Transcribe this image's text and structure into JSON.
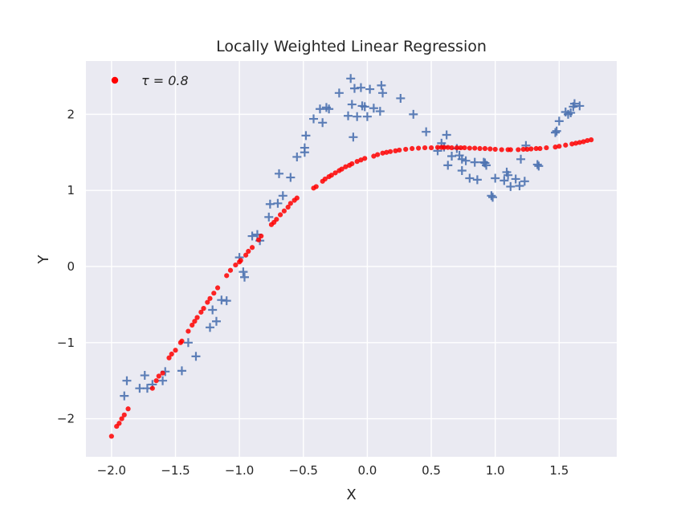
{
  "chart_data": {
    "type": "scatter",
    "title": "Locally Weighted Linear Regression",
    "xlabel": "X",
    "ylabel": "Y",
    "xlim": [
      -2.2,
      1.95
    ],
    "ylim": [
      -2.5,
      2.7
    ],
    "xticks": [
      -2.0,
      -1.5,
      -1.0,
      -0.5,
      0.0,
      0.5,
      1.0,
      1.5
    ],
    "xtick_labels": [
      "−2.0",
      "−1.5",
      "−1.0",
      "−0.5",
      "0.0",
      "0.5",
      "1.0",
      "1.5"
    ],
    "yticks": [
      -2,
      -1,
      0,
      1,
      2
    ],
    "ytick_labels": [
      "−2",
      "−1",
      "0",
      "1",
      "2"
    ],
    "grid": true,
    "legend_position": "top-left",
    "background_color": "#eaeaf2",
    "series": [
      {
        "name": "τ = 0.8",
        "marker": "circle",
        "color": "#ff0000",
        "points": [
          [
            -2.0,
            -2.23
          ],
          [
            -1.96,
            -2.1
          ],
          [
            -1.94,
            -2.06
          ],
          [
            -1.92,
            -2.0
          ],
          [
            -1.9,
            -1.95
          ],
          [
            -1.87,
            -1.87
          ],
          [
            -1.68,
            -1.6
          ],
          [
            -1.65,
            -1.5
          ],
          [
            -1.63,
            -1.44
          ],
          [
            -1.6,
            -1.4
          ],
          [
            -1.55,
            -1.2
          ],
          [
            -1.53,
            -1.15
          ],
          [
            -1.5,
            -1.1
          ],
          [
            -1.46,
            -1.0
          ],
          [
            -1.45,
            -0.98
          ],
          [
            -1.4,
            -0.85
          ],
          [
            -1.37,
            -0.77
          ],
          [
            -1.35,
            -0.72
          ],
          [
            -1.33,
            -0.67
          ],
          [
            -1.3,
            -0.6
          ],
          [
            -1.28,
            -0.55
          ],
          [
            -1.25,
            -0.47
          ],
          [
            -1.23,
            -0.42
          ],
          [
            -1.2,
            -0.35
          ],
          [
            -1.17,
            -0.28
          ],
          [
            -1.1,
            -0.12
          ],
          [
            -1.07,
            -0.05
          ],
          [
            -1.03,
            0.02
          ],
          [
            -1.0,
            0.06
          ],
          [
            -0.99,
            0.08
          ],
          [
            -0.95,
            0.15
          ],
          [
            -0.93,
            0.2
          ],
          [
            -0.9,
            0.25
          ],
          [
            -0.85,
            0.35
          ],
          [
            -0.83,
            0.4
          ],
          [
            -0.75,
            0.55
          ],
          [
            -0.73,
            0.58
          ],
          [
            -0.71,
            0.62
          ],
          [
            -0.68,
            0.68
          ],
          [
            -0.65,
            0.73
          ],
          [
            -0.62,
            0.78
          ],
          [
            -0.6,
            0.83
          ],
          [
            -0.57,
            0.87
          ],
          [
            -0.55,
            0.9
          ],
          [
            -0.42,
            1.03
          ],
          [
            -0.4,
            1.05
          ],
          [
            -0.35,
            1.12
          ],
          [
            -0.33,
            1.15
          ],
          [
            -0.3,
            1.18
          ],
          [
            -0.28,
            1.2
          ],
          [
            -0.25,
            1.23
          ],
          [
            -0.22,
            1.26
          ],
          [
            -0.2,
            1.28
          ],
          [
            -0.17,
            1.31
          ],
          [
            -0.14,
            1.33
          ],
          [
            -0.12,
            1.35
          ],
          [
            -0.08,
            1.38
          ],
          [
            -0.05,
            1.4
          ],
          [
            -0.02,
            1.42
          ],
          [
            0.05,
            1.45
          ],
          [
            0.08,
            1.47
          ],
          [
            0.12,
            1.49
          ],
          [
            0.15,
            1.5
          ],
          [
            0.18,
            1.51
          ],
          [
            0.22,
            1.52
          ],
          [
            0.25,
            1.53
          ],
          [
            0.3,
            1.54
          ],
          [
            0.35,
            1.55
          ],
          [
            0.4,
            1.555
          ],
          [
            0.45,
            1.56
          ],
          [
            0.5,
            1.56
          ],
          [
            0.55,
            1.565
          ],
          [
            0.58,
            1.565
          ],
          [
            0.6,
            1.565
          ],
          [
            0.63,
            1.565
          ],
          [
            0.66,
            1.56
          ],
          [
            0.7,
            1.56
          ],
          [
            0.73,
            1.56
          ],
          [
            0.76,
            1.56
          ],
          [
            0.8,
            1.555
          ],
          [
            0.84,
            1.555
          ],
          [
            0.88,
            1.55
          ],
          [
            0.92,
            1.55
          ],
          [
            0.96,
            1.545
          ],
          [
            1.0,
            1.54
          ],
          [
            1.05,
            1.535
          ],
          [
            1.1,
            1.535
          ],
          [
            1.12,
            1.535
          ],
          [
            1.18,
            1.535
          ],
          [
            1.22,
            1.54
          ],
          [
            1.25,
            1.54
          ],
          [
            1.28,
            1.545
          ],
          [
            1.32,
            1.55
          ],
          [
            1.35,
            1.55
          ],
          [
            1.4,
            1.56
          ],
          [
            1.47,
            1.57
          ],
          [
            1.5,
            1.58
          ],
          [
            1.55,
            1.595
          ],
          [
            1.6,
            1.61
          ],
          [
            1.63,
            1.62
          ],
          [
            1.66,
            1.63
          ],
          [
            1.69,
            1.64
          ],
          [
            1.72,
            1.655
          ],
          [
            1.75,
            1.665
          ]
        ]
      },
      {
        "name": "",
        "marker": "plus",
        "color": "#4c72b0",
        "points": [
          [
            -1.9,
            -1.7
          ],
          [
            -1.88,
            -1.5
          ],
          [
            -1.78,
            -1.6
          ],
          [
            -1.74,
            -1.43
          ],
          [
            -1.72,
            -1.6
          ],
          [
            -1.68,
            -1.55
          ],
          [
            -1.6,
            -1.5
          ],
          [
            -1.58,
            -1.38
          ],
          [
            -1.45,
            -1.37
          ],
          [
            -1.4,
            -1.0
          ],
          [
            -1.34,
            -1.18
          ],
          [
            -1.23,
            -0.8
          ],
          [
            -1.21,
            -0.57
          ],
          [
            -1.18,
            -0.72
          ],
          [
            -1.14,
            -0.44
          ],
          [
            -1.1,
            -0.45
          ],
          [
            -1.0,
            0.12
          ],
          [
            -0.97,
            -0.07
          ],
          [
            -0.96,
            -0.14
          ],
          [
            -0.9,
            0.4
          ],
          [
            -0.86,
            0.42
          ],
          [
            -0.84,
            0.34
          ],
          [
            -0.77,
            0.65
          ],
          [
            -0.76,
            0.82
          ],
          [
            -0.7,
            0.83
          ],
          [
            -0.69,
            1.22
          ],
          [
            -0.66,
            0.93
          ],
          [
            -0.6,
            1.17
          ],
          [
            -0.55,
            1.44
          ],
          [
            -0.49,
            1.5
          ],
          [
            -0.49,
            1.56
          ],
          [
            -0.48,
            1.72
          ],
          [
            -0.42,
            1.94
          ],
          [
            -0.37,
            2.07
          ],
          [
            -0.35,
            1.89
          ],
          [
            -0.32,
            2.09
          ],
          [
            -0.3,
            2.07
          ],
          [
            -0.22,
            2.28
          ],
          [
            -0.15,
            1.98
          ],
          [
            -0.13,
            2.47
          ],
          [
            -0.12,
            2.13
          ],
          [
            -0.11,
            1.7
          ],
          [
            -0.1,
            2.34
          ],
          [
            -0.08,
            1.97
          ],
          [
            -0.05,
            2.35
          ],
          [
            -0.04,
            2.11
          ],
          [
            -0.02,
            2.1
          ],
          [
            0.0,
            1.97
          ],
          [
            0.02,
            2.33
          ],
          [
            0.05,
            2.08
          ],
          [
            0.1,
            2.04
          ],
          [
            0.11,
            2.38
          ],
          [
            0.12,
            2.28
          ],
          [
            0.26,
            2.21
          ],
          [
            0.36,
            2.0
          ],
          [
            0.46,
            1.77
          ],
          [
            0.55,
            1.52
          ],
          [
            0.58,
            1.62
          ],
          [
            0.6,
            1.57
          ],
          [
            0.62,
            1.73
          ],
          [
            0.63,
            1.33
          ],
          [
            0.66,
            1.45
          ],
          [
            0.7,
            1.55
          ],
          [
            0.72,
            1.46
          ],
          [
            0.74,
            1.26
          ],
          [
            0.74,
            1.41
          ],
          [
            0.77,
            1.39
          ],
          [
            0.8,
            1.16
          ],
          [
            0.84,
            1.37
          ],
          [
            0.86,
            1.14
          ],
          [
            0.91,
            1.37
          ],
          [
            0.92,
            1.36
          ],
          [
            0.93,
            1.33
          ],
          [
            0.97,
            0.93
          ],
          [
            0.98,
            0.91
          ],
          [
            1.0,
            1.16
          ],
          [
            1.07,
            1.13
          ],
          [
            1.09,
            1.24
          ],
          [
            1.1,
            1.2
          ],
          [
            1.12,
            1.05
          ],
          [
            1.16,
            1.15
          ],
          [
            1.19,
            1.06
          ],
          [
            1.2,
            1.41
          ],
          [
            1.23,
            1.12
          ],
          [
            1.24,
            1.59
          ],
          [
            1.33,
            1.34
          ],
          [
            1.34,
            1.32
          ],
          [
            1.47,
            1.76
          ],
          [
            1.48,
            1.78
          ],
          [
            1.5,
            1.91
          ],
          [
            1.55,
            2.03
          ],
          [
            1.57,
            2.0
          ],
          [
            1.59,
            2.02
          ],
          [
            1.61,
            2.1
          ],
          [
            1.62,
            2.14
          ],
          [
            1.66,
            2.11
          ]
        ]
      }
    ]
  }
}
